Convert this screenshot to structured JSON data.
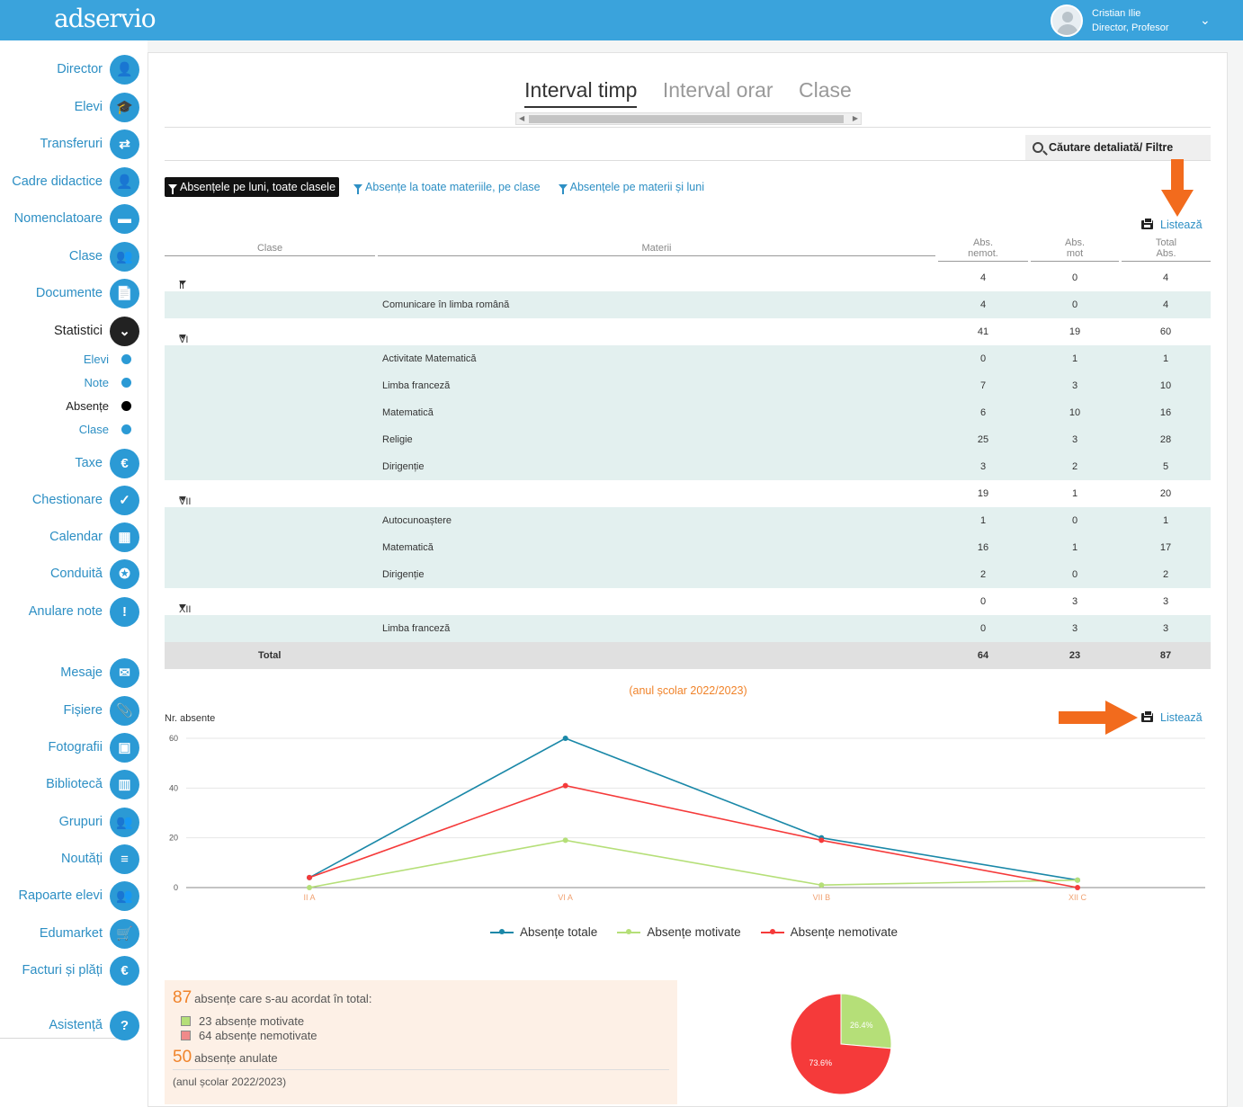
{
  "app": {
    "logo": "adservio"
  },
  "user": {
    "name": "Cristian Ilie",
    "role": "Director, Profesor"
  },
  "sidebar": {
    "items": [
      {
        "label": "Director",
        "icon": "user-tie-icon",
        "glyph": "👤"
      },
      {
        "label": "Elevi",
        "icon": "graduate-icon",
        "glyph": "🎓"
      },
      {
        "label": "Transferuri",
        "icon": "transfer-icon",
        "glyph": "⇄"
      },
      {
        "label": "Cadre didactice",
        "icon": "teacher-icon",
        "glyph": "👤"
      },
      {
        "label": "Nomenclatoare",
        "icon": "nomenclature-icon",
        "glyph": "▬"
      },
      {
        "label": "Clase",
        "icon": "classes-icon",
        "glyph": "👥"
      },
      {
        "label": "Documente",
        "icon": "document-icon",
        "glyph": "📄"
      },
      {
        "label": "Statistici",
        "icon": "chevron-down-icon",
        "glyph": "⌄"
      }
    ],
    "sub_items": [
      {
        "label": "Elevi"
      },
      {
        "label": "Note"
      },
      {
        "label": "Absențe"
      },
      {
        "label": "Clase"
      }
    ],
    "items2": [
      {
        "label": "Taxe",
        "icon": "euro-icon",
        "glyph": "€"
      },
      {
        "label": "Chestionare",
        "icon": "survey-icon",
        "glyph": "✓"
      },
      {
        "label": "Calendar",
        "icon": "calendar-icon",
        "glyph": "▦"
      },
      {
        "label": "Conduită",
        "icon": "badge-icon",
        "glyph": "✪"
      },
      {
        "label": "Anulare note",
        "icon": "cancel-grade-icon",
        "glyph": "!"
      },
      {
        "label": "Mesaje",
        "icon": "envelope-icon",
        "glyph": "✉"
      },
      {
        "label": "Fișiere",
        "icon": "paperclip-icon",
        "glyph": "📎"
      },
      {
        "label": "Fotografii",
        "icon": "photo-icon",
        "glyph": "▣"
      },
      {
        "label": "Bibliotecă",
        "icon": "books-icon",
        "glyph": "▥"
      },
      {
        "label": "Grupuri",
        "icon": "group-icon",
        "glyph": "👥"
      },
      {
        "label": "Noutăți",
        "icon": "news-icon",
        "glyph": "≡"
      },
      {
        "label": "Rapoarte elevi",
        "icon": "report-icon",
        "glyph": "👥"
      },
      {
        "label": "Edumarket",
        "icon": "cart-icon",
        "glyph": "🛒"
      },
      {
        "label": "Facturi și plăți",
        "icon": "euro-icon",
        "glyph": "€"
      }
    ],
    "help": {
      "label": "Asistență",
      "icon": "help-icon",
      "glyph": "?"
    }
  },
  "tabs": [
    "Interval timp",
    "Interval orar",
    "Clase"
  ],
  "search": {
    "label": "Căutare detaliată/ Filtre"
  },
  "filters": [
    "Absențele pe luni, toate clasele",
    "Absențe la toate materiile, pe clase",
    "Absențele pe materii și luni"
  ],
  "print_label": "Listează",
  "table": {
    "headers": {
      "clase": "Clase",
      "materii": "Materii",
      "nemot_1": "Abs.",
      "nemot_2": "nemot.",
      "mot_1": "Abs.",
      "mot_2": "mot",
      "total_1": "Total",
      "total_2": "Abs."
    },
    "rows": [
      {
        "type": "class",
        "name": "II A",
        "nemot": "4",
        "mot": "0",
        "total": "4"
      },
      {
        "type": "subject",
        "name": "Comunicare în limba română",
        "nemot": "4",
        "mot": "0",
        "total": "4"
      },
      {
        "type": "class",
        "name": "VI A",
        "nemot": "41",
        "mot": "19",
        "total": "60"
      },
      {
        "type": "subject",
        "name": "Activitate Matematică",
        "nemot": "0",
        "mot": "1",
        "total": "1"
      },
      {
        "type": "subject",
        "name": "Limba franceză",
        "nemot": "7",
        "mot": "3",
        "total": "10"
      },
      {
        "type": "subject",
        "name": "Matematică",
        "nemot": "6",
        "mot": "10",
        "total": "16"
      },
      {
        "type": "subject",
        "name": "Religie",
        "nemot": "25",
        "mot": "3",
        "total": "28"
      },
      {
        "type": "subject",
        "name": "Dirigenție",
        "nemot": "3",
        "mot": "2",
        "total": "5"
      },
      {
        "type": "class",
        "name": "VII B",
        "nemot": "19",
        "mot": "1",
        "total": "20"
      },
      {
        "type": "subject",
        "name": "Autocunoaștere",
        "nemot": "1",
        "mot": "0",
        "total": "1"
      },
      {
        "type": "subject",
        "name": "Matematică",
        "nemot": "16",
        "mot": "1",
        "total": "17"
      },
      {
        "type": "subject",
        "name": "Dirigenție",
        "nemot": "2",
        "mot": "0",
        "total": "2"
      },
      {
        "type": "class",
        "name": "XII C",
        "nemot": "0",
        "mot": "3",
        "total": "3"
      },
      {
        "type": "subject",
        "name": "Limba franceză",
        "nemot": "0",
        "mot": "3",
        "total": "3"
      },
      {
        "type": "total",
        "name": "Total",
        "nemot": "64",
        "mot": "23",
        "total": "87"
      }
    ]
  },
  "chart_data": [
    {
      "type": "line",
      "title": "(anul școlar 2022/2023)",
      "ylabel": "Nr. absente",
      "categories": [
        "II A",
        "VI A",
        "VII B",
        "XII C"
      ],
      "ylim": [
        0,
        60
      ],
      "yticks": [
        0,
        20,
        40,
        60
      ],
      "grid": true,
      "legend": "bottom",
      "series": [
        {
          "name": "Absențe totale",
          "values": [
            4,
            60,
            20,
            3
          ],
          "color": "#1a88a8"
        },
        {
          "name": "Absențe motivate",
          "values": [
            0,
            19,
            1,
            3
          ],
          "color": "#b5df78"
        },
        {
          "name": "Absențe nemotivate",
          "values": [
            4,
            41,
            19,
            0
          ],
          "color": "#f53a3a"
        }
      ]
    },
    {
      "type": "pie",
      "slices": [
        {
          "label": "26.4%",
          "value": 26.4,
          "color": "#b5df78"
        },
        {
          "label": "73.6%",
          "value": 73.6,
          "color": "#f53a3a"
        }
      ]
    }
  ],
  "summary": {
    "total_num": "87",
    "total_text": "absențe care s-au acordat în total:",
    "motivate": "23 absențe motivate",
    "nemotivate": "64 absențe nemotivate",
    "anulate_num": "50",
    "anulate_text": "absențe anulate",
    "year": "(anul școlar 2022/2023)"
  }
}
